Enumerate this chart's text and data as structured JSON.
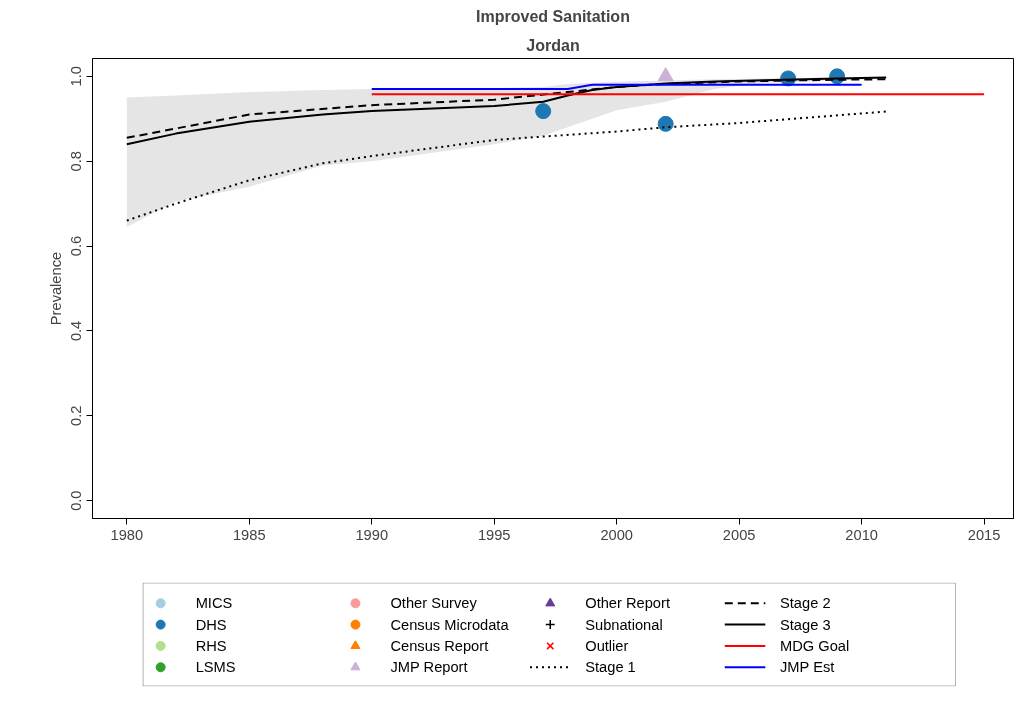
{
  "chart_data": {
    "type": "line",
    "title": "Improved Sanitation",
    "subtitle": "Jordan",
    "ylabel": "Prevalence",
    "xlim": [
      1978.6,
      2016.2
    ],
    "xticks": [
      1980,
      1985,
      1990,
      1995,
      2000,
      2005,
      2010,
      2015
    ],
    "ylim": [
      -0.042,
      1.042
    ],
    "yticks": [
      {
        "value": 0,
        "label": "0.0"
      },
      0.2,
      0.4,
      0.6,
      0.8,
      {
        "value": 1,
        "label": "1.0"
      }
    ],
    "grid": false,
    "legend": "bottom",
    "series": [
      {
        "name": "MICS",
        "type": "scatter",
        "marker": "circle",
        "color": "#a6cee3"
      },
      {
        "name": "DHS",
        "type": "scatter",
        "marker": "circle",
        "color": "#1f78b4",
        "x": [
          1997,
          2002,
          2007,
          2009
        ],
        "values": [
          0.918,
          0.888,
          0.995,
          1.0
        ]
      },
      {
        "name": "RHS",
        "type": "scatter",
        "marker": "circle",
        "color": "#b2df8a"
      },
      {
        "name": "LSMS",
        "type": "scatter",
        "marker": "circle",
        "color": "#33a02c"
      },
      {
        "name": "Other Survey",
        "type": "scatter",
        "marker": "circle",
        "color": "#fb9a99"
      },
      {
        "name": "Census Microdata",
        "type": "scatter",
        "marker": "circle",
        "color": "#ff7f00"
      },
      {
        "name": "Census Report",
        "type": "scatter",
        "marker": "triangle",
        "color": "#ff7f00"
      },
      {
        "name": "JMP Report",
        "type": "scatter",
        "marker": "triangle",
        "color": "#cab2d6",
        "x": [
          2002
        ],
        "values": [
          1.0
        ]
      },
      {
        "name": "Other Report",
        "type": "scatter",
        "marker": "triangle",
        "color": "#6a3d9a"
      },
      {
        "name": "Subnational",
        "type": "scatter",
        "marker": "cross",
        "color": "#000000"
      },
      {
        "name": "Outlier",
        "type": "scatter",
        "marker": "x",
        "color": "#ff0000"
      },
      {
        "name": "Stage 1",
        "line_style": "dotted",
        "color": "#000000",
        "x": [
          1980,
          1982,
          1985,
          1988,
          1990,
          1995,
          2000,
          2002,
          2005,
          2011
        ],
        "values": [
          0.66,
          0.7,
          0.755,
          0.795,
          0.812,
          0.85,
          0.87,
          0.88,
          0.89,
          0.917
        ]
      },
      {
        "name": "Stage 2",
        "line_style": "dashed",
        "color": "#000000",
        "x": [
          1980,
          1985,
          1990,
          1995,
          1998,
          2000,
          2002,
          2005,
          2007,
          2009,
          2011
        ],
        "values": [
          0.855,
          0.91,
          0.932,
          0.945,
          0.963,
          0.975,
          0.982,
          0.988,
          0.99,
          0.992,
          0.993
        ]
      },
      {
        "name": "Stage 3",
        "line_style": "solid",
        "color": "#000000",
        "x": [
          1980,
          1982,
          1985,
          1988,
          1990,
          1995,
          1997,
          1998,
          1999,
          2000,
          2002,
          2004,
          2006,
          2009,
          2011
        ],
        "values": [
          0.84,
          0.865,
          0.893,
          0.91,
          0.918,
          0.93,
          0.94,
          0.955,
          0.968,
          0.975,
          0.983,
          0.988,
          0.991,
          0.995,
          0.997
        ],
        "lower": [
          0.645,
          0.705,
          0.74,
          0.79,
          0.8,
          0.84,
          0.86,
          0.88,
          0.9,
          0.92,
          0.94,
          0.97,
          0.985,
          0.99,
          0.995
        ],
        "upper": [
          0.95,
          0.955,
          0.963,
          0.968,
          0.97,
          0.972,
          0.975,
          0.982,
          0.985,
          0.987,
          0.99,
          0.993,
          0.995,
          0.997,
          0.998
        ]
      },
      {
        "name": "MDG Goal",
        "line_style": "solid",
        "color": "#ff0000",
        "x": [
          1990,
          2015
        ],
        "values": [
          0.958,
          0.958
        ]
      },
      {
        "name": "JMP Est",
        "line_style": "solid",
        "color": "#0000ff",
        "x": [
          1990,
          1998,
          1999,
          2010
        ],
        "values": [
          0.97,
          0.97,
          0.98,
          0.98
        ]
      }
    ]
  }
}
